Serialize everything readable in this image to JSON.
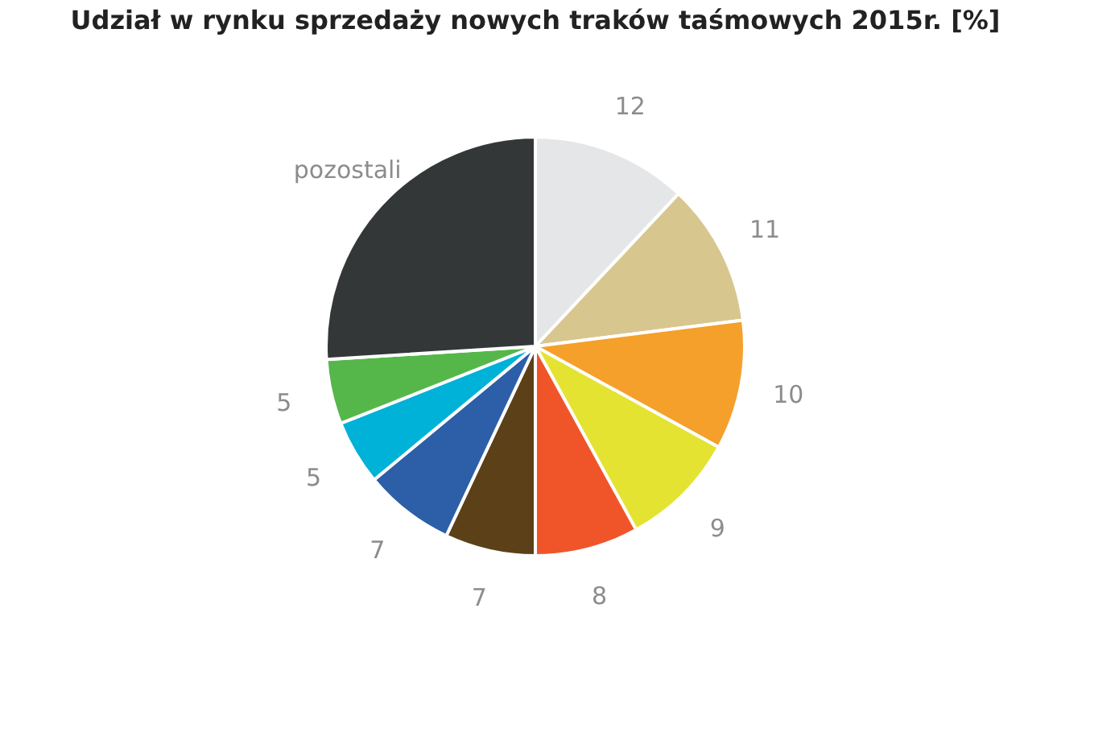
{
  "chart_data": {
    "type": "pie",
    "title": "Udział w rynku sprzedaży nowych traków taśmowych 2015r. [%]",
    "categories": [
      null,
      null,
      null,
      null,
      null,
      null,
      null,
      null,
      null,
      "pozostali"
    ],
    "values": [
      12,
      11,
      10,
      9,
      8,
      7,
      7,
      5,
      5,
      26
    ],
    "value_labels": [
      "12",
      "11",
      "10",
      "9",
      "8",
      "7",
      "7",
      "5",
      "5",
      null
    ],
    "colors": [
      "#e5e6e7",
      "#d8c68f",
      "#f5a02a",
      "#e4e332",
      "#f0552a",
      "#5c4017",
      "#2d5ea8",
      "#00b1d8",
      "#55b74a",
      "#333738"
    ],
    "legend": false
  }
}
